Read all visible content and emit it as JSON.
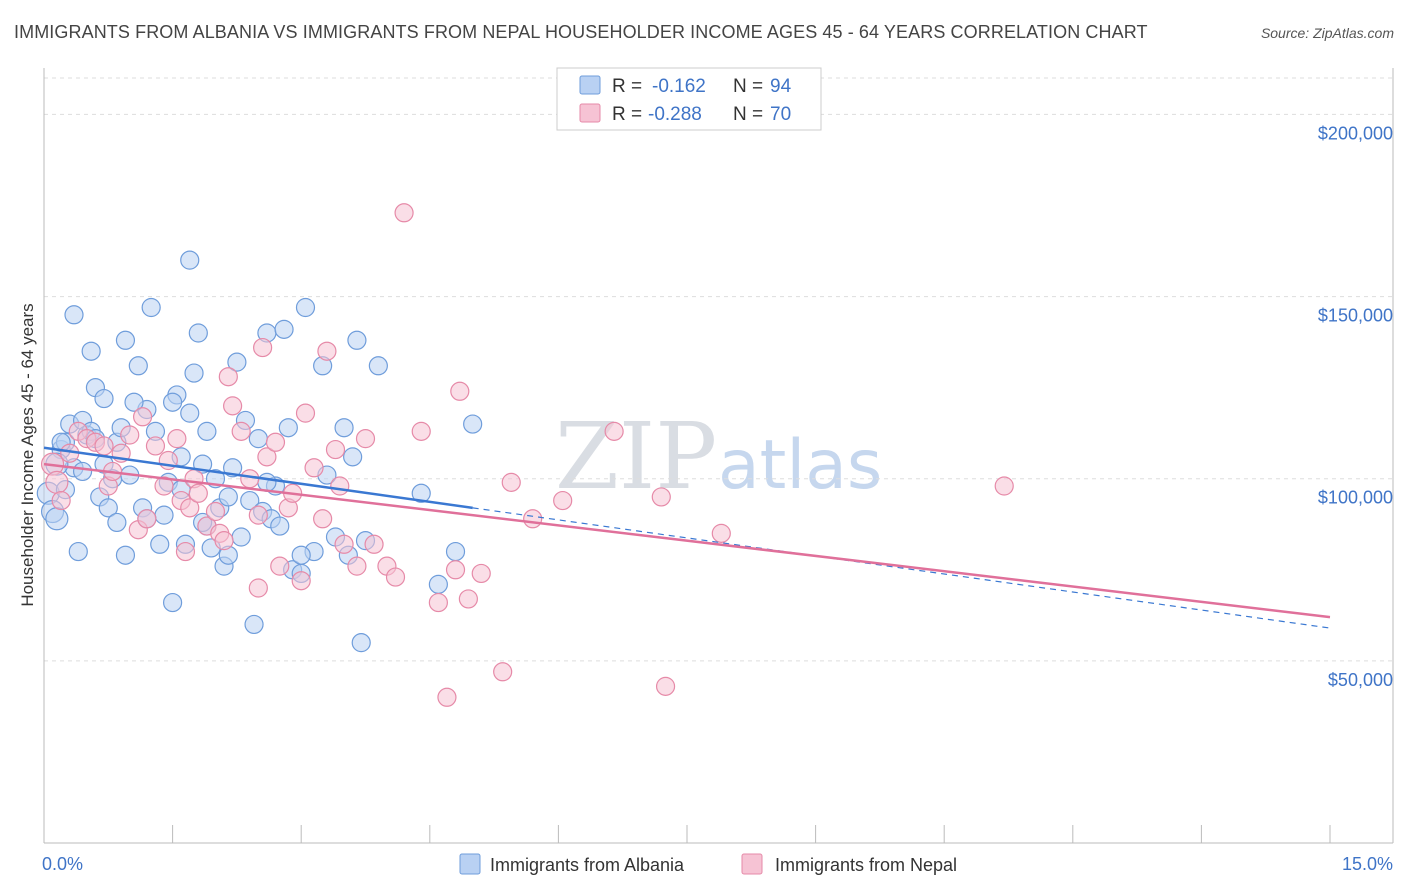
{
  "title": "IMMIGRANTS FROM ALBANIA VS IMMIGRANTS FROM NEPAL HOUSEHOLDER INCOME AGES 45 - 64 YEARS CORRELATION CHART",
  "source": "Source: ZipAtlas.com",
  "watermark": {
    "zip": "ZIP",
    "atlas": "atlas"
  },
  "colors": {
    "albania_fill": "#b9d1f3",
    "albania_stroke": "#6f9ddb",
    "albania_line": "#3a78d2",
    "nepal_fill": "#f6c3d4",
    "nepal_stroke": "#e68aa8",
    "nepal_line": "#e0709a",
    "grid": "#dddddd",
    "tick_text": "#3f74c7"
  },
  "legend": {
    "rows": [
      {
        "r_label": "R =",
        "r_value": "-0.162",
        "n_label": "N =",
        "n_value": "94"
      },
      {
        "r_label": "R =",
        "r_value": "-0.288",
        "n_label": "N =",
        "n_value": "70"
      }
    ]
  },
  "chart_data": {
    "type": "scatter",
    "xlabel": "",
    "ylabel": "Householder Income Ages 45 - 64 years",
    "xlim": [
      0,
      15
    ],
    "ylim": [
      0,
      210000
    ],
    "x_tick_labels": [
      "0.0%",
      "15.0%"
    ],
    "y_ticks": [
      50000,
      100000,
      150000,
      200000
    ],
    "y_tick_labels": [
      "$50,000",
      "$100,000",
      "$150,000",
      "$200,000"
    ],
    "grid": true,
    "legend_position": "bottom",
    "series": [
      {
        "name": "Immigrants from Albania",
        "r": -0.162,
        "n": 94,
        "trend": {
          "x0": 0,
          "y0": 108500,
          "x1": 5.0,
          "y1": 92000,
          "dashed_to_x": 15,
          "dashed_to_y": 59000
        },
        "points": [
          [
            0.05,
            96000
          ],
          [
            0.1,
            91000
          ],
          [
            0.15,
            89000
          ],
          [
            0.2,
            108000
          ],
          [
            0.25,
            110000
          ],
          [
            0.3,
            115000
          ],
          [
            0.35,
            103000
          ],
          [
            0.4,
            80000
          ],
          [
            0.45,
            116000
          ],
          [
            0.35,
            145000
          ],
          [
            0.5,
            112000
          ],
          [
            0.55,
            113000
          ],
          [
            0.6,
            125000
          ],
          [
            0.55,
            135000
          ],
          [
            0.65,
            95000
          ],
          [
            0.7,
            122000
          ],
          [
            0.75,
            92000
          ],
          [
            0.8,
            100000
          ],
          [
            0.85,
            110000
          ],
          [
            0.9,
            114000
          ],
          [
            0.95,
            79000
          ],
          [
            1.0,
            101000
          ],
          [
            0.95,
            138000
          ],
          [
            1.1,
            131000
          ],
          [
            1.15,
            92000
          ],
          [
            1.2,
            119000
          ],
          [
            1.25,
            147000
          ],
          [
            1.3,
            113000
          ],
          [
            1.35,
            82000
          ],
          [
            1.4,
            90000
          ],
          [
            1.45,
            99000
          ],
          [
            1.5,
            66000
          ],
          [
            1.55,
            123000
          ],
          [
            1.6,
            106000
          ],
          [
            1.65,
            82000
          ],
          [
            1.7,
            160000
          ],
          [
            1.7,
            118000
          ],
          [
            1.75,
            129000
          ],
          [
            1.8,
            140000
          ],
          [
            1.85,
            104000
          ],
          [
            1.9,
            113000
          ],
          [
            1.95,
            81000
          ],
          [
            2.0,
            100000
          ],
          [
            2.05,
            92000
          ],
          [
            2.1,
            76000
          ],
          [
            2.15,
            79000
          ],
          [
            2.2,
            103000
          ],
          [
            2.25,
            132000
          ],
          [
            2.3,
            84000
          ],
          [
            2.35,
            116000
          ],
          [
            2.4,
            94000
          ],
          [
            2.45,
            60000
          ],
          [
            2.5,
            111000
          ],
          [
            2.55,
            91000
          ],
          [
            2.6,
            140000
          ],
          [
            2.65,
            89000
          ],
          [
            2.7,
            98000
          ],
          [
            2.75,
            87000
          ],
          [
            2.8,
            141000
          ],
          [
            2.85,
            114000
          ],
          [
            2.9,
            75000
          ],
          [
            3.0,
            74000
          ],
          [
            3.05,
            147000
          ],
          [
            3.15,
            80000
          ],
          [
            3.25,
            131000
          ],
          [
            3.3,
            101000
          ],
          [
            3.4,
            84000
          ],
          [
            3.5,
            114000
          ],
          [
            3.55,
            79000
          ],
          [
            3.6,
            106000
          ],
          [
            3.65,
            138000
          ],
          [
            3.7,
            55000
          ],
          [
            3.75,
            83000
          ],
          [
            3.9,
            131000
          ],
          [
            4.4,
            96000
          ],
          [
            4.6,
            71000
          ],
          [
            4.8,
            80000
          ],
          [
            5.0,
            115000
          ],
          [
            0.15,
            104000
          ],
          [
            0.2,
            110000
          ],
          [
            0.45,
            102000
          ],
          [
            0.6,
            111000
          ],
          [
            0.7,
            104000
          ],
          [
            0.85,
            88000
          ],
          [
            1.05,
            121000
          ],
          [
            1.2,
            89000
          ],
          [
            1.5,
            121000
          ],
          [
            1.6,
            97000
          ],
          [
            1.9,
            87000
          ],
          [
            2.15,
            95000
          ],
          [
            2.6,
            99000
          ],
          [
            3.0,
            79000
          ],
          [
            1.85,
            88000
          ],
          [
            0.25,
            97000
          ]
        ]
      },
      {
        "name": "Immigrants from Nepal",
        "r": -0.288,
        "n": 70,
        "trend": {
          "x0": 0,
          "y0": 104000,
          "x1": 15,
          "y1": 62000
        },
        "points": [
          [
            0.1,
            104000
          ],
          [
            0.15,
            99000
          ],
          [
            0.2,
            94000
          ],
          [
            0.3,
            107000
          ],
          [
            0.4,
            113000
          ],
          [
            0.5,
            111000
          ],
          [
            0.6,
            110000
          ],
          [
            0.7,
            109000
          ],
          [
            0.75,
            98000
          ],
          [
            0.8,
            102000
          ],
          [
            0.9,
            107000
          ],
          [
            1.0,
            112000
          ],
          [
            1.1,
            86000
          ],
          [
            1.15,
            117000
          ],
          [
            1.2,
            89000
          ],
          [
            1.3,
            109000
          ],
          [
            1.4,
            98000
          ],
          [
            1.45,
            105000
          ],
          [
            1.55,
            111000
          ],
          [
            1.6,
            94000
          ],
          [
            1.7,
            92000
          ],
          [
            1.75,
            100000
          ],
          [
            1.8,
            96000
          ],
          [
            1.9,
            87000
          ],
          [
            2.0,
            91000
          ],
          [
            2.05,
            85000
          ],
          [
            2.1,
            83000
          ],
          [
            2.15,
            128000
          ],
          [
            2.2,
            120000
          ],
          [
            2.3,
            113000
          ],
          [
            2.4,
            100000
          ],
          [
            2.5,
            90000
          ],
          [
            2.55,
            136000
          ],
          [
            2.6,
            106000
          ],
          [
            2.7,
            110000
          ],
          [
            2.75,
            76000
          ],
          [
            2.85,
            92000
          ],
          [
            2.9,
            96000
          ],
          [
            3.0,
            72000
          ],
          [
            3.05,
            118000
          ],
          [
            3.15,
            103000
          ],
          [
            3.25,
            89000
          ],
          [
            3.3,
            135000
          ],
          [
            3.4,
            108000
          ],
          [
            3.45,
            98000
          ],
          [
            3.5,
            82000
          ],
          [
            3.65,
            76000
          ],
          [
            3.75,
            111000
          ],
          [
            3.85,
            82000
          ],
          [
            4.0,
            76000
          ],
          [
            4.1,
            73000
          ],
          [
            4.2,
            173000
          ],
          [
            4.4,
            113000
          ],
          [
            4.6,
            66000
          ],
          [
            4.7,
            40000
          ],
          [
            4.8,
            75000
          ],
          [
            4.85,
            124000
          ],
          [
            4.95,
            67000
          ],
          [
            5.1,
            74000
          ],
          [
            5.35,
            47000
          ],
          [
            5.45,
            99000
          ],
          [
            5.7,
            89000
          ],
          [
            6.05,
            94000
          ],
          [
            6.65,
            113000
          ],
          [
            7.2,
            95000
          ],
          [
            7.25,
            43000
          ],
          [
            7.9,
            85000
          ],
          [
            11.2,
            98000
          ],
          [
            2.5,
            70000
          ],
          [
            1.65,
            80000
          ]
        ]
      }
    ]
  }
}
